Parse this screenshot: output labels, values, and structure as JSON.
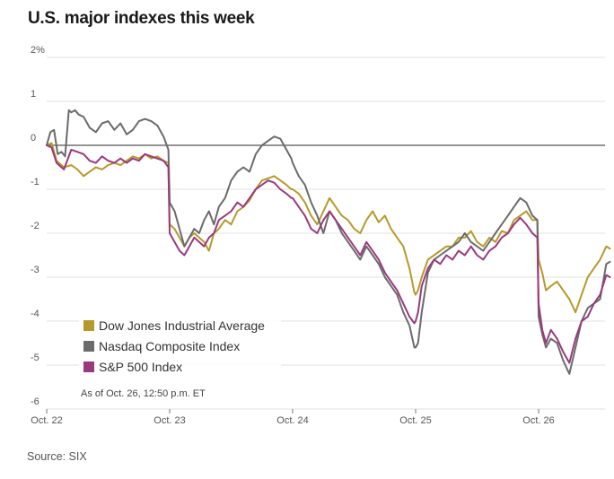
{
  "title": "U.S. major indexes this week",
  "source": "Source: SIX",
  "note": "As of Oct. 26, 12:50 p.m. ET",
  "colors": {
    "dow": "#b59a2b",
    "nasdaq": "#6b6b6b",
    "sp500": "#993a7e",
    "zero": "#555555",
    "grid": "#e2e2e2"
  },
  "chart_data": {
    "type": "line",
    "ylabel": "",
    "xlabel": "",
    "ylim": [
      -6,
      2
    ],
    "xlim": [
      0,
      4.6
    ],
    "y_ticks": [
      {
        "value": 2,
        "label": "2%"
      },
      {
        "value": 1,
        "label": "1"
      },
      {
        "value": 0,
        "label": "0"
      },
      {
        "value": -1,
        "label": "-1"
      },
      {
        "value": -2,
        "label": "-2"
      },
      {
        "value": -3,
        "label": "-3"
      },
      {
        "value": -4,
        "label": "-4"
      },
      {
        "value": -5,
        "label": "-5"
      },
      {
        "value": -6,
        "label": "-6"
      }
    ],
    "x_ticks": [
      {
        "value": 0,
        "label": "Oct. 22"
      },
      {
        "value": 1,
        "label": "Oct. 23"
      },
      {
        "value": 2,
        "label": "Oct. 24"
      },
      {
        "value": 3,
        "label": "Oct. 25"
      },
      {
        "value": 4,
        "label": "Oct. 26"
      }
    ],
    "grid": true,
    "legend_position": "bottom-left",
    "series": [
      {
        "key": "dow",
        "name": "Dow Jones Industrial Average",
        "x": [
          0,
          0.04,
          0.08,
          0.14,
          0.2,
          0.25,
          0.3,
          0.35,
          0.4,
          0.45,
          0.5,
          0.55,
          0.6,
          0.65,
          0.7,
          0.75,
          0.8,
          0.85,
          0.9,
          0.95,
          0.99,
          1.0,
          1.04,
          1.08,
          1.12,
          1.16,
          1.2,
          1.24,
          1.28,
          1.32,
          1.36,
          1.4,
          1.45,
          1.5,
          1.55,
          1.6,
          1.65,
          1.7,
          1.75,
          1.8,
          1.85,
          1.9,
          1.95,
          1.99,
          2.0,
          2.05,
          2.1,
          2.15,
          2.2,
          2.25,
          2.3,
          2.35,
          2.4,
          2.45,
          2.5,
          2.55,
          2.6,
          2.65,
          2.7,
          2.75,
          2.8,
          2.85,
          2.9,
          2.95,
          2.99,
          3.0,
          3.02,
          3.05,
          3.1,
          3.15,
          3.2,
          3.25,
          3.3,
          3.35,
          3.4,
          3.45,
          3.5,
          3.55,
          3.6,
          3.65,
          3.7,
          3.75,
          3.8,
          3.85,
          3.9,
          3.95,
          3.99,
          4.0,
          4.03,
          4.06,
          4.1,
          4.15,
          4.2,
          4.25,
          4.3,
          4.35,
          4.4,
          4.45,
          4.5,
          4.55,
          4.58
        ],
        "values": [
          0,
          0.05,
          -0.35,
          -0.5,
          -0.45,
          -0.55,
          -0.7,
          -0.6,
          -0.5,
          -0.55,
          -0.45,
          -0.4,
          -0.45,
          -0.35,
          -0.25,
          -0.3,
          -0.2,
          -0.3,
          -0.25,
          -0.35,
          -0.4,
          -1.8,
          -1.9,
          -2.1,
          -2.3,
          -2.1,
          -2.0,
          -2.1,
          -2.2,
          -2.4,
          -2.0,
          -1.9,
          -1.7,
          -1.8,
          -1.5,
          -1.4,
          -1.25,
          -1.0,
          -0.8,
          -0.75,
          -0.7,
          -0.8,
          -0.9,
          -1.0,
          -1.0,
          -1.1,
          -1.3,
          -1.6,
          -1.8,
          -1.5,
          -1.2,
          -1.4,
          -1.6,
          -1.7,
          -1.9,
          -2.0,
          -1.7,
          -1.5,
          -1.75,
          -1.6,
          -1.9,
          -2.1,
          -2.3,
          -2.8,
          -3.35,
          -3.4,
          -3.3,
          -3.0,
          -2.6,
          -2.5,
          -2.4,
          -2.3,
          -2.3,
          -2.1,
          -2.1,
          -1.95,
          -2.2,
          -2.3,
          -2.1,
          -2.2,
          -1.95,
          -2.0,
          -1.7,
          -1.6,
          -1.5,
          -1.7,
          -1.7,
          -2.6,
          -2.9,
          -3.3,
          -3.2,
          -3.1,
          -3.3,
          -3.5,
          -3.8,
          -3.4,
          -3.0,
          -2.8,
          -2.6,
          -2.3,
          -2.35
        ]
      },
      {
        "key": "nasdaq",
        "name": "Nasdaq Composite Index",
        "x": [
          0,
          0.03,
          0.06,
          0.09,
          0.12,
          0.15,
          0.18,
          0.2,
          0.23,
          0.26,
          0.3,
          0.35,
          0.4,
          0.45,
          0.5,
          0.55,
          0.6,
          0.65,
          0.7,
          0.75,
          0.8,
          0.85,
          0.9,
          0.95,
          0.99,
          1.0,
          1.04,
          1.08,
          1.12,
          1.16,
          1.2,
          1.24,
          1.28,
          1.32,
          1.36,
          1.4,
          1.45,
          1.5,
          1.55,
          1.6,
          1.65,
          1.7,
          1.75,
          1.8,
          1.85,
          1.9,
          1.95,
          1.99,
          2.0,
          2.05,
          2.1,
          2.15,
          2.2,
          2.25,
          2.3,
          2.35,
          2.4,
          2.45,
          2.5,
          2.55,
          2.6,
          2.65,
          2.7,
          2.75,
          2.8,
          2.85,
          2.9,
          2.95,
          2.99,
          3.0,
          3.02,
          3.05,
          3.1,
          3.15,
          3.2,
          3.25,
          3.3,
          3.35,
          3.4,
          3.45,
          3.5,
          3.55,
          3.6,
          3.65,
          3.7,
          3.75,
          3.8,
          3.85,
          3.9,
          3.95,
          3.99,
          4.0,
          4.03,
          4.06,
          4.1,
          4.15,
          4.2,
          4.25,
          4.3,
          4.35,
          4.4,
          4.45,
          4.5,
          4.55,
          4.58
        ],
        "values": [
          0,
          0.3,
          0.35,
          -0.2,
          -0.15,
          -0.25,
          0.8,
          0.75,
          0.8,
          0.7,
          0.65,
          0.4,
          0.3,
          0.5,
          0.55,
          0.35,
          0.5,
          0.25,
          0.35,
          0.55,
          0.6,
          0.55,
          0.45,
          0.2,
          -0.1,
          -1.3,
          -1.5,
          -1.9,
          -2.3,
          -2.1,
          -1.9,
          -2.0,
          -1.7,
          -1.5,
          -1.8,
          -1.4,
          -1.2,
          -0.8,
          -0.6,
          -0.5,
          -0.6,
          -0.2,
          0.0,
          0.1,
          0.2,
          0.15,
          -0.1,
          -0.3,
          -0.4,
          -0.7,
          -0.9,
          -1.3,
          -1.6,
          -2.0,
          -1.5,
          -1.7,
          -2.0,
          -2.2,
          -2.4,
          -2.6,
          -2.3,
          -2.5,
          -2.7,
          -3.0,
          -3.2,
          -3.4,
          -3.8,
          -4.1,
          -4.6,
          -4.6,
          -4.5,
          -3.8,
          -2.9,
          -2.6,
          -2.5,
          -2.4,
          -2.3,
          -2.2,
          -2.0,
          -2.2,
          -2.3,
          -2.4,
          -2.2,
          -2.0,
          -1.8,
          -1.6,
          -1.4,
          -1.2,
          -1.3,
          -1.6,
          -1.7,
          -3.9,
          -4.3,
          -4.6,
          -4.4,
          -4.5,
          -4.9,
          -5.2,
          -4.6,
          -4.0,
          -3.7,
          -3.6,
          -3.5,
          -2.7,
          -2.65
        ]
      },
      {
        "key": "sp500",
        "name": "S&P 500 Index",
        "x": [
          0,
          0.04,
          0.08,
          0.14,
          0.2,
          0.25,
          0.3,
          0.35,
          0.4,
          0.45,
          0.5,
          0.55,
          0.6,
          0.65,
          0.7,
          0.75,
          0.8,
          0.85,
          0.9,
          0.95,
          0.99,
          1.0,
          1.04,
          1.08,
          1.12,
          1.16,
          1.2,
          1.24,
          1.28,
          1.32,
          1.36,
          1.4,
          1.45,
          1.5,
          1.55,
          1.6,
          1.65,
          1.7,
          1.75,
          1.8,
          1.85,
          1.9,
          1.95,
          1.99,
          2.0,
          2.05,
          2.1,
          2.15,
          2.2,
          2.25,
          2.3,
          2.35,
          2.4,
          2.45,
          2.5,
          2.55,
          2.6,
          2.65,
          2.7,
          2.75,
          2.8,
          2.85,
          2.9,
          2.95,
          2.99,
          3.0,
          3.02,
          3.05,
          3.1,
          3.15,
          3.2,
          3.25,
          3.3,
          3.35,
          3.4,
          3.45,
          3.5,
          3.55,
          3.6,
          3.65,
          3.7,
          3.75,
          3.8,
          3.85,
          3.9,
          3.95,
          3.99,
          4.0,
          4.03,
          4.06,
          4.1,
          4.15,
          4.2,
          4.25,
          4.3,
          4.35,
          4.4,
          4.45,
          4.5,
          4.55,
          4.58
        ],
        "values": [
          0,
          -0.05,
          -0.4,
          -0.55,
          -0.1,
          -0.15,
          -0.2,
          -0.35,
          -0.4,
          -0.25,
          -0.35,
          -0.4,
          -0.3,
          -0.4,
          -0.3,
          -0.35,
          -0.2,
          -0.25,
          -0.3,
          -0.35,
          -0.5,
          -2.0,
          -2.2,
          -2.4,
          -2.5,
          -2.3,
          -2.1,
          -2.2,
          -2.3,
          -2.1,
          -2.0,
          -1.7,
          -1.6,
          -1.5,
          -1.3,
          -1.4,
          -1.2,
          -1.0,
          -0.9,
          -0.8,
          -0.85,
          -1.0,
          -1.1,
          -1.2,
          -1.2,
          -1.4,
          -1.6,
          -1.9,
          -2.0,
          -1.7,
          -1.5,
          -1.7,
          -1.9,
          -2.1,
          -2.3,
          -2.5,
          -2.2,
          -2.4,
          -2.6,
          -2.9,
          -3.1,
          -3.3,
          -3.6,
          -3.9,
          -4.05,
          -4.0,
          -3.8,
          -3.2,
          -2.8,
          -2.6,
          -2.7,
          -2.5,
          -2.6,
          -2.4,
          -2.5,
          -2.3,
          -2.5,
          -2.6,
          -2.4,
          -2.3,
          -2.1,
          -2.0,
          -1.8,
          -1.65,
          -1.8,
          -2.0,
          -2.1,
          -3.6,
          -4.2,
          -4.5,
          -4.2,
          -4.4,
          -4.7,
          -4.95,
          -4.4,
          -4.0,
          -3.9,
          -3.6,
          -3.4,
          -2.95,
          -3.0
        ]
      }
    ]
  }
}
